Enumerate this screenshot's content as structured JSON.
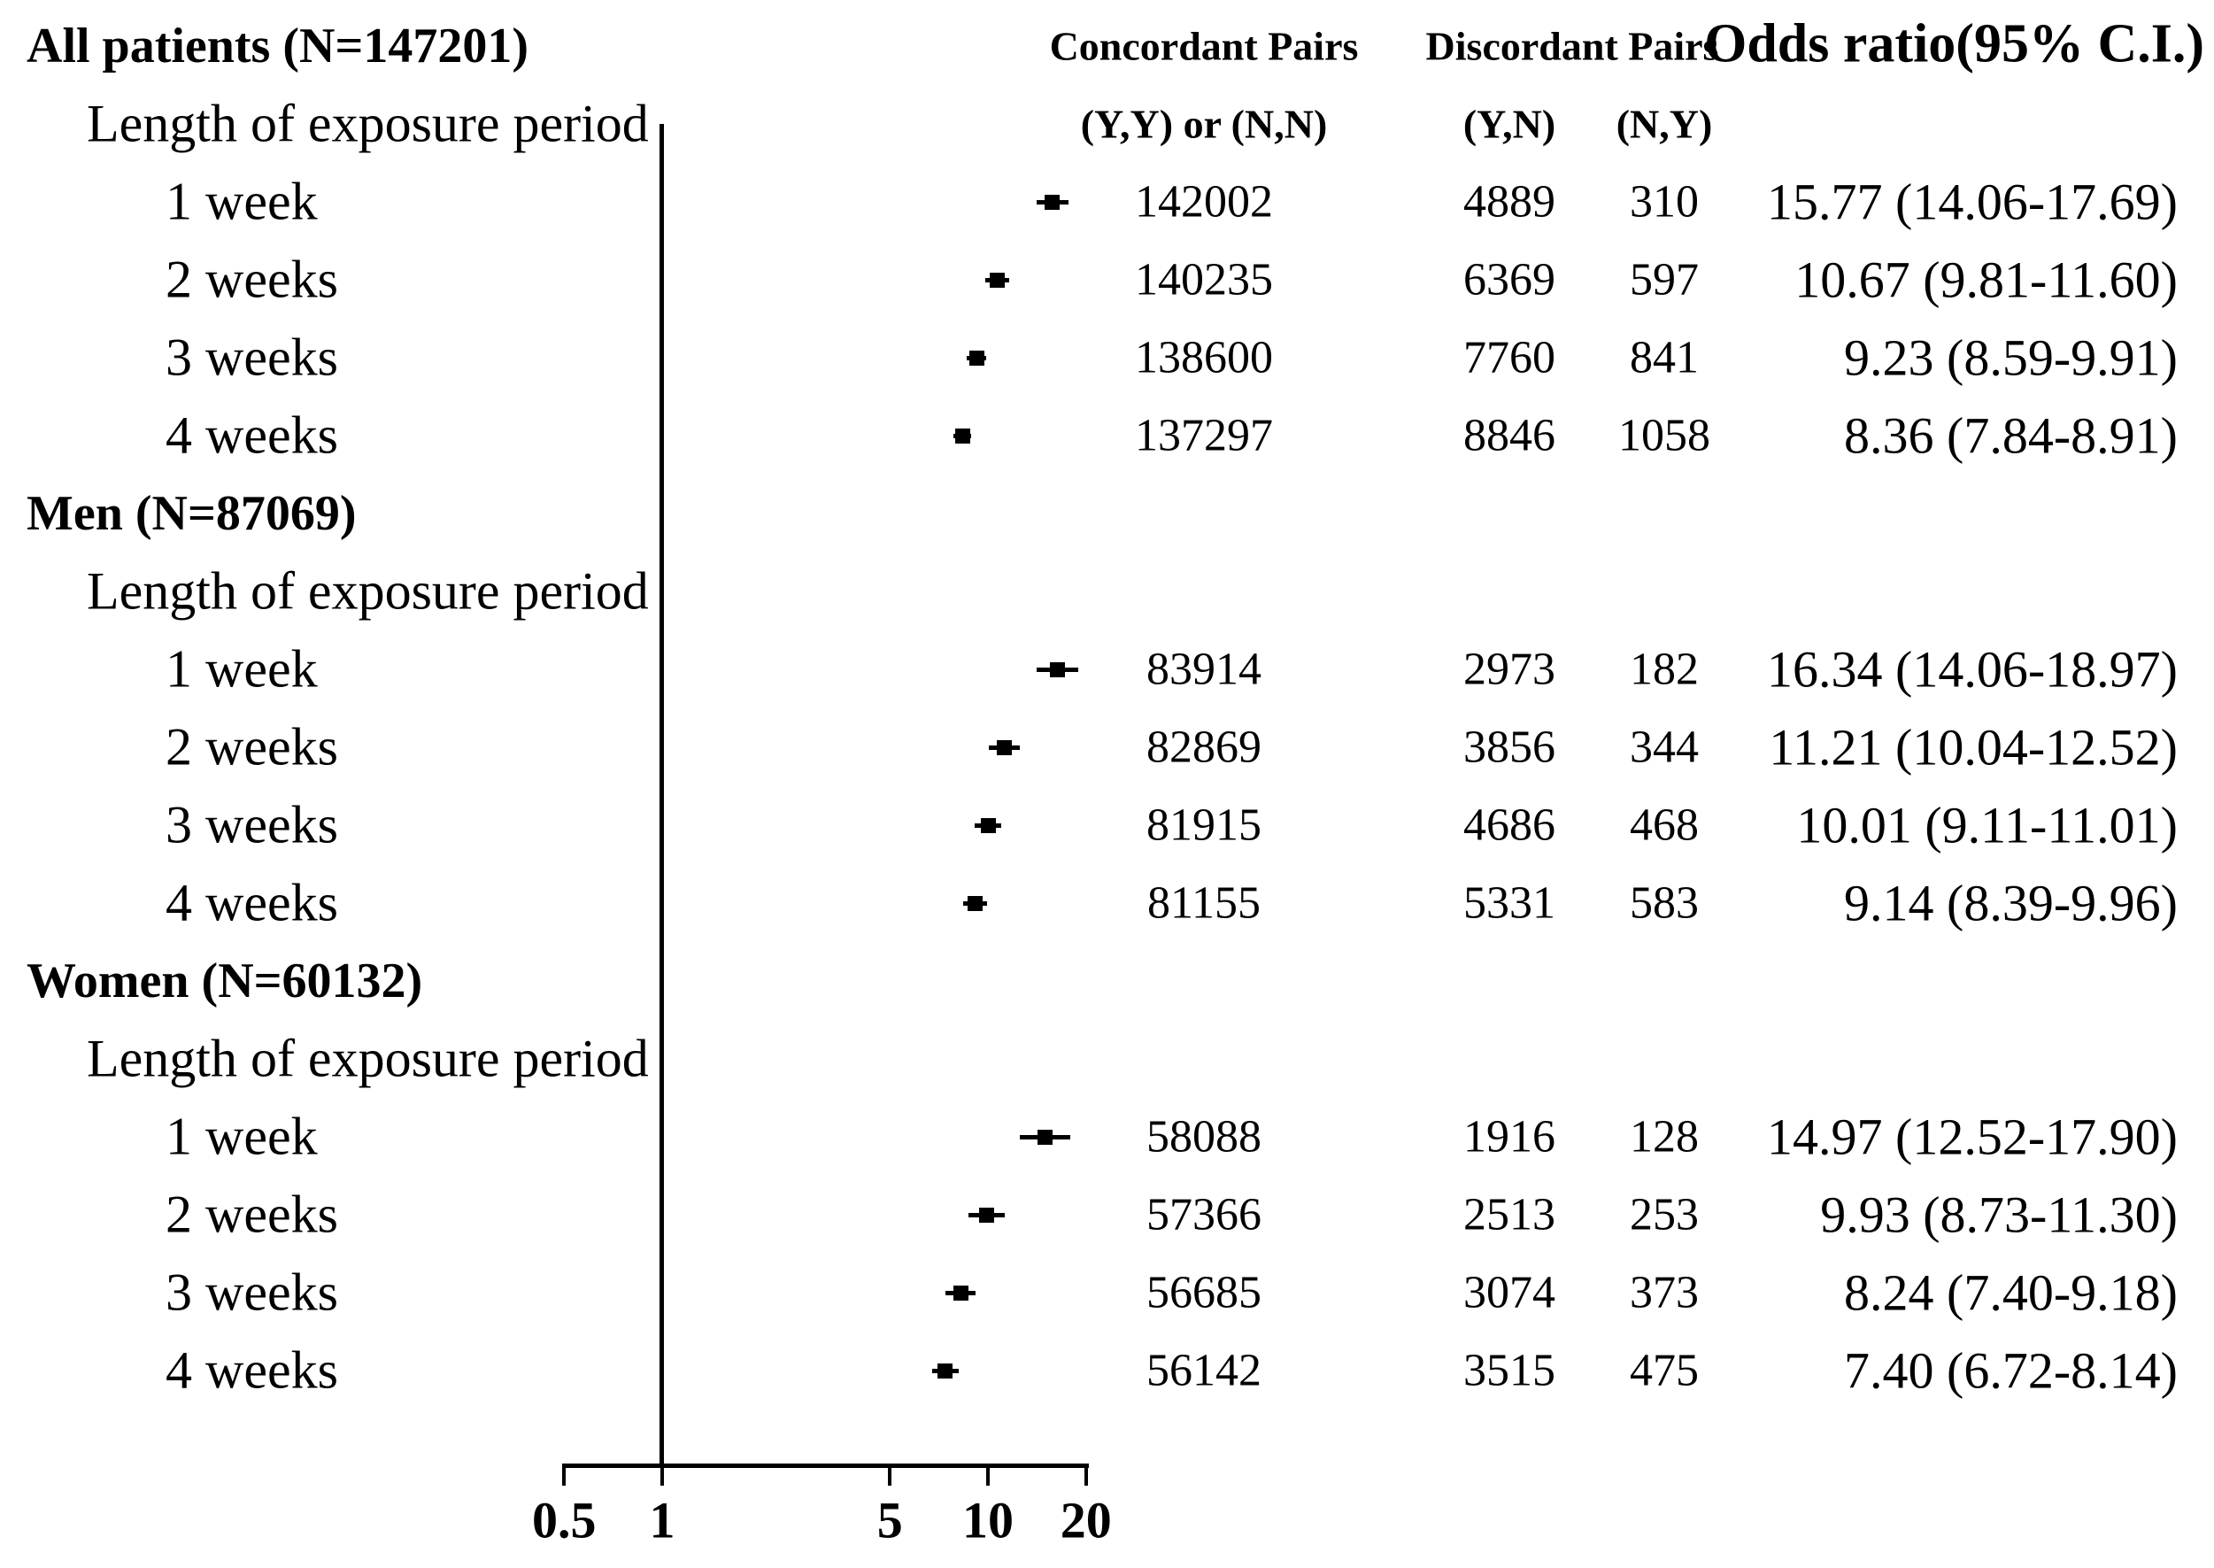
{
  "headers": {
    "concordant_line1": "Concordant Pairs",
    "concordant_line2": "(Y,Y) or (N,N)",
    "discordant_line1": "Discordant Pairs",
    "discordant_yn": "(Y,N)",
    "discordant_ny": "(N,Y)",
    "odds_header": "Odds ratio(95% C.I.)"
  },
  "colors": {
    "text": "#000000",
    "marker": "#000000",
    "background": "#ffffff"
  },
  "chart_data": {
    "type": "forest",
    "x_scale": "log10",
    "x_ticks": [
      0.5,
      1,
      5,
      10,
      20
    ],
    "x_tick_labels": [
      "0.5",
      "1",
      "5",
      "10",
      "20"
    ],
    "x_range": [
      0.5,
      20
    ],
    "reference_line": 1,
    "groups": [
      {
        "label": "All patients (N=147201)",
        "sublabel": "Length of exposure period",
        "rows": [
          {
            "label": "1 week",
            "concordant": "142002",
            "discordant_yn": "4889",
            "discordant_ny": "310",
            "or": 15.77,
            "ci_low": 14.06,
            "ci_high": 17.69,
            "or_text": "15.77 (14.06-17.69)"
          },
          {
            "label": "2 weeks",
            "concordant": "140235",
            "discordant_yn": "6369",
            "discordant_ny": "597",
            "or": 10.67,
            "ci_low": 9.81,
            "ci_high": 11.6,
            "or_text": "10.67 (9.81-11.60)"
          },
          {
            "label": "3 weeks",
            "concordant": "138600",
            "discordant_yn": "7760",
            "discordant_ny": "841",
            "or": 9.23,
            "ci_low": 8.59,
            "ci_high": 9.91,
            "or_text": "9.23 (8.59-9.91)"
          },
          {
            "label": "4 weeks",
            "concordant": "137297",
            "discordant_yn": "8846",
            "discordant_ny": "1058",
            "or": 8.36,
            "ci_low": 7.84,
            "ci_high": 8.91,
            "or_text": "8.36 (7.84-8.91)"
          }
        ]
      },
      {
        "label": "Men (N=87069)",
        "sublabel": "Length of exposure period",
        "rows": [
          {
            "label": "1 week",
            "concordant": "83914",
            "discordant_yn": "2973",
            "discordant_ny": "182",
            "or": 16.34,
            "ci_low": 14.06,
            "ci_high": 18.97,
            "or_text": "16.34 (14.06-18.97)"
          },
          {
            "label": "2 weeks",
            "concordant": "82869",
            "discordant_yn": "3856",
            "discordant_ny": "344",
            "or": 11.21,
            "ci_low": 10.04,
            "ci_high": 12.52,
            "or_text": "11.21 (10.04-12.52)"
          },
          {
            "label": "3 weeks",
            "concordant": "81915",
            "discordant_yn": "4686",
            "discordant_ny": "468",
            "or": 10.01,
            "ci_low": 9.11,
            "ci_high": 11.01,
            "or_text": "10.01 (9.11-11.01)"
          },
          {
            "label": "4 weeks",
            "concordant": "81155",
            "discordant_yn": "5331",
            "discordant_ny": "583",
            "or": 9.14,
            "ci_low": 8.39,
            "ci_high": 9.96,
            "or_text": "9.14 (8.39-9.96)"
          }
        ]
      },
      {
        "label": "Women (N=60132)",
        "sublabel": "Length of exposure period",
        "rows": [
          {
            "label": "1 week",
            "concordant": "58088",
            "discordant_yn": "1916",
            "discordant_ny": "128",
            "or": 14.97,
            "ci_low": 12.52,
            "ci_high": 17.9,
            "or_text": "14.97 (12.52-17.90)"
          },
          {
            "label": "2 weeks",
            "concordant": "57366",
            "discordant_yn": "2513",
            "discordant_ny": "253",
            "or": 9.93,
            "ci_low": 8.73,
            "ci_high": 11.3,
            "or_text": "9.93 (8.73-11.30)"
          },
          {
            "label": "3 weeks",
            "concordant": "56685",
            "discordant_yn": "3074",
            "discordant_ny": "373",
            "or": 8.24,
            "ci_low": 7.4,
            "ci_high": 9.18,
            "or_text": "8.24 (7.40-9.18)"
          },
          {
            "label": "4 weeks",
            "concordant": "56142",
            "discordant_yn": "3515",
            "discordant_ny": "475",
            "or": 7.4,
            "ci_low": 6.72,
            "ci_high": 8.14,
            "or_text": "7.40 (6.72-8.14)"
          }
        ]
      }
    ]
  }
}
